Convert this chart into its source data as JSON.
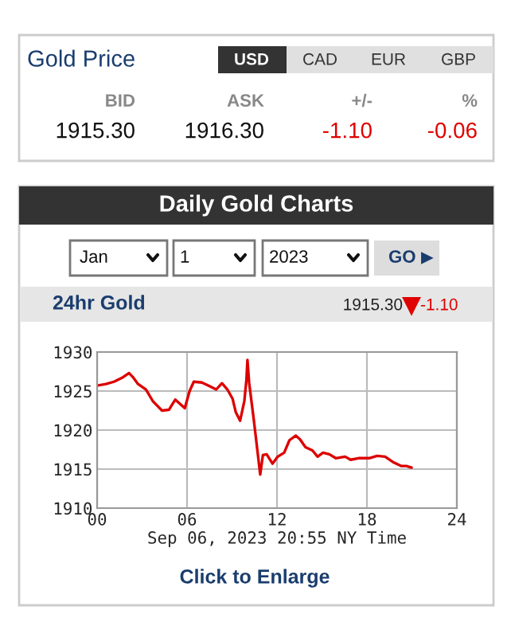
{
  "chart_data": {
    "type": "line",
    "title": "Daily Gold Charts",
    "subtitle": "24hr Gold",
    "xlabel": "Sep 06, 2023 20:55 NY Time",
    "annotations": [
      "Gold Price",
      "USD",
      "CAD",
      "EUR",
      "GBP",
      "BID",
      "ASK",
      "+/-",
      "%",
      "1915.30",
      "1916.30",
      "-1.10",
      "-0.06",
      "Jan",
      "1",
      "2023",
      "GO",
      "1915.30",
      "-1.10",
      "Click to Enlarge"
    ],
    "series": [
      {
        "color": "#dd0000",
        "x": [
          0,
          0.6,
          1.13,
          1.67,
          2.13,
          2.38,
          2.73,
          3.26,
          3.72,
          4.33,
          4.79,
          5.21,
          5.57,
          5.85,
          6.17,
          6.45,
          6.98,
          7.52,
          7.94,
          8.33,
          8.69,
          9.04,
          9.25,
          9.54,
          9.82,
          9.96,
          10.03,
          10.14,
          10.46,
          10.71,
          10.88,
          11.06,
          11.31,
          11.7,
          12.05,
          12.48,
          12.83,
          13.26,
          13.54,
          13.9,
          14.36,
          14.71,
          15.07,
          15.49,
          15.92,
          16.55,
          16.91,
          17.44,
          18.15,
          18.68,
          19.21,
          19.74,
          20.28,
          20.63,
          20.98
        ],
        "values": [
          1925.7,
          1925.9,
          1926.2,
          1926.7,
          1927.3,
          1926.8,
          1925.9,
          1925.2,
          1923.7,
          1922.5,
          1922.6,
          1923.9,
          1923.3,
          1922.8,
          1925.0,
          1926.2,
          1926.1,
          1925.6,
          1925.2,
          1926.0,
          1925.2,
          1924.0,
          1922.3,
          1921.2,
          1923.7,
          1926.4,
          1929.0,
          1926.1,
          1921.2,
          1917.1,
          1914.3,
          1916.8,
          1916.9,
          1915.7,
          1916.6,
          1917.1,
          1918.7,
          1919.3,
          1918.8,
          1917.8,
          1917.4,
          1916.6,
          1917.1,
          1916.9,
          1916.4,
          1916.6,
          1916.2,
          1916.4,
          1916.4,
          1916.7,
          1916.6,
          1915.9,
          1915.4,
          1915.4,
          1915.2
        ]
      }
    ],
    "xlim": [
      0,
      24
    ],
    "xticks": [
      {
        "value": 0,
        "label": "00"
      },
      {
        "value": 6,
        "label": "06"
      },
      {
        "value": 12,
        "label": "12"
      },
      {
        "value": 18,
        "label": "18"
      },
      {
        "value": 24,
        "label": "24"
      }
    ],
    "ylim": [
      1910,
      1930
    ],
    "yticks": [
      1910,
      1915,
      1920,
      1925,
      1930
    ],
    "grid": true,
    "marker": "none",
    "line_style": "solid"
  }
}
